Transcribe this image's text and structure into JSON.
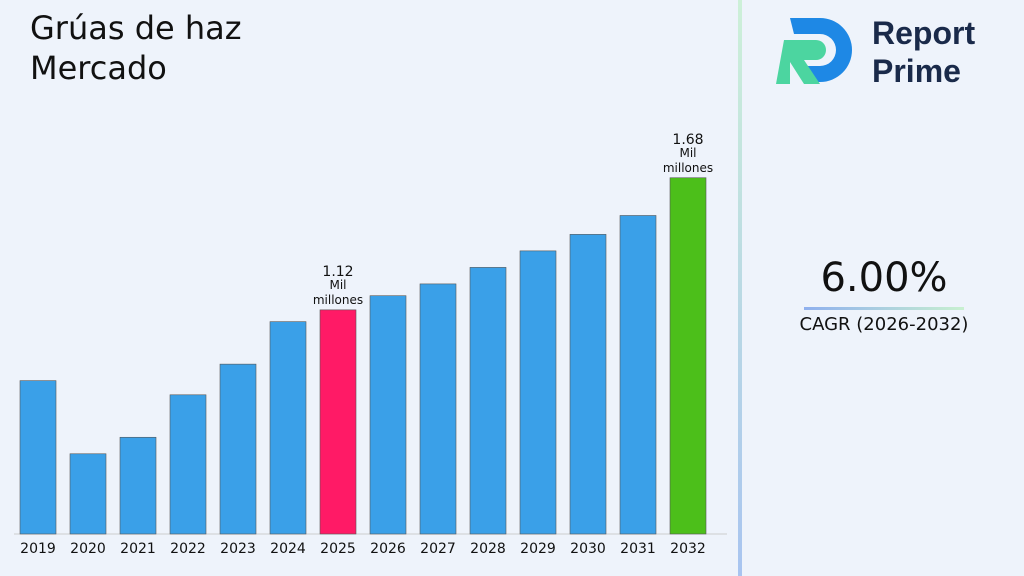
{
  "chart_data": {
    "type": "bar",
    "title": "Grúas de haz Mercado",
    "categories": [
      "2019",
      "2020",
      "2021",
      "2022",
      "2023",
      "2024",
      "2025",
      "2026",
      "2027",
      "2028",
      "2029",
      "2030",
      "2031",
      "2032"
    ],
    "values": [
      0.82,
      0.51,
      0.58,
      0.76,
      0.89,
      1.07,
      1.12,
      1.18,
      1.23,
      1.3,
      1.37,
      1.44,
      1.52,
      1.68
    ],
    "value_labels": [
      null,
      null,
      null,
      null,
      null,
      null,
      "1.12",
      null,
      null,
      null,
      null,
      null,
      null,
      "1.68"
    ],
    "value_unit": "Mil millones",
    "colors": [
      "#3aa0e8",
      "#3aa0e8",
      "#3aa0e8",
      "#3aa0e8",
      "#3aa0e8",
      "#3aa0e8",
      "#ff1a66",
      "#3aa0e8",
      "#3aa0e8",
      "#3aa0e8",
      "#3aa0e8",
      "#3aa0e8",
      "#3aa0e8",
      "#4cbf1a"
    ],
    "ylim": [
      0.17,
      1.84
    ],
    "cagr": {
      "value": "6.00%",
      "label": "CAGR (2026-2032)"
    }
  },
  "logo": {
    "line1": "Report",
    "line2": "Prime"
  }
}
